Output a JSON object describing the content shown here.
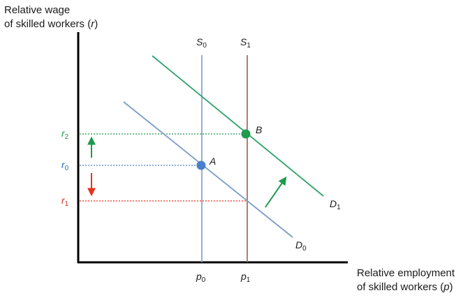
{
  "y_axis": {
    "label_line1": "Relative wage",
    "label_line2": "of skilled workers (",
    "label_var": "r",
    "label_close": ")"
  },
  "x_axis": {
    "label_line1": "Relative employment",
    "label_line2": "of skilled workers (",
    "label_var": "p",
    "label_close": ")"
  },
  "ticks_y": [
    {
      "main": "r",
      "sub": "2",
      "color": "#1f9a4e"
    },
    {
      "main": "r",
      "sub": "0",
      "color": "#2f6fb5"
    },
    {
      "main": "r",
      "sub": "1",
      "color": "#d23a2a"
    }
  ],
  "ticks_x": [
    {
      "main": "p",
      "sub": "0"
    },
    {
      "main": "p",
      "sub": "1"
    }
  ],
  "curves": {
    "S0": {
      "main": "S",
      "sub": "0",
      "color": "#7a9cc6"
    },
    "S1": {
      "main": "S",
      "sub": "1",
      "color": "#a65a4a"
    },
    "D0": {
      "main": "D",
      "sub": "0",
      "color": "#7a9cc6"
    },
    "D1": {
      "main": "D",
      "sub": "1",
      "color": "#2ea36a"
    }
  },
  "points": {
    "A": {
      "label": "A",
      "color": "#4a7fc9"
    },
    "B": {
      "label": "B",
      "color": "#1f9a4e"
    }
  },
  "arrows": {
    "up_color": "#1f9a4e",
    "down_color": "#e8321e",
    "shift_color": "#1f9a4e"
  }
}
